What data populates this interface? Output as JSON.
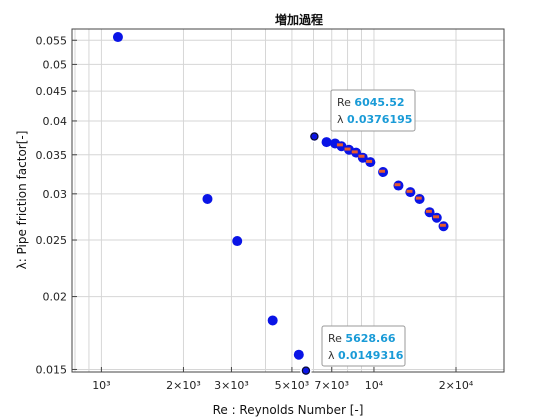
{
  "chart_data": {
    "type": "scatter",
    "title": "増加過程",
    "xlabel": "Re : Reynolds Number [-]",
    "ylabel": "λ: Pipe friction factor[-]",
    "xscale": "log",
    "yscale": "log",
    "xlim": [
      780,
      30000
    ],
    "ylim": [
      0.01485,
      0.0575
    ],
    "grid": true,
    "xticks": [
      {
        "value": 1000,
        "label": "10³"
      },
      {
        "value": 2000,
        "label": "2×10³"
      },
      {
        "value": 3000,
        "label": "3×10³"
      },
      {
        "value": 5000,
        "label": "5×10³"
      },
      {
        "value": 7000,
        "label": "7×10³"
      },
      {
        "value": 10000,
        "label": "10⁴"
      },
      {
        "value": 20000,
        "label": "2×10⁴"
      }
    ],
    "yticks": [
      {
        "value": 0.015,
        "label": "0.015"
      },
      {
        "value": 0.02,
        "label": "0.02"
      },
      {
        "value": 0.025,
        "label": "0.025"
      },
      {
        "value": 0.03,
        "label": "0.03"
      },
      {
        "value": 0.035,
        "label": "0.035"
      },
      {
        "value": 0.04,
        "label": "0.04"
      },
      {
        "value": 0.045,
        "label": "0.045"
      },
      {
        "value": 0.05,
        "label": "0.05"
      },
      {
        "value": 0.055,
        "label": "0.055"
      }
    ],
    "series": [
      {
        "color": "#0a14e6",
        "marker": "filled-circle",
        "points": [
          {
            "x": 1150,
            "y": 0.0557
          },
          {
            "x": 2450,
            "y": 0.0294
          },
          {
            "x": 3150,
            "y": 0.0249
          },
          {
            "x": 4250,
            "y": 0.0182
          },
          {
            "x": 5300,
            "y": 0.0159
          },
          {
            "x": 6700,
            "y": 0.0368
          },
          {
            "x": 7200,
            "y": 0.0366
          },
          {
            "x": 7600,
            "y": 0.0362
          },
          {
            "x": 8100,
            "y": 0.0357
          },
          {
            "x": 8600,
            "y": 0.0353
          },
          {
            "x": 9100,
            "y": 0.0346
          },
          {
            "x": 9700,
            "y": 0.034
          },
          {
            "x": 10800,
            "y": 0.0327
          },
          {
            "x": 12300,
            "y": 0.031
          },
          {
            "x": 13600,
            "y": 0.0302
          },
          {
            "x": 14700,
            "y": 0.0294
          },
          {
            "x": 16000,
            "y": 0.0279
          },
          {
            "x": 17000,
            "y": 0.0273
          },
          {
            "x": 18000,
            "y": 0.0264
          }
        ]
      },
      {
        "color": "#e85a2a",
        "marker": "dash",
        "points": [
          {
            "x": 7500,
            "y": 0.0364
          },
          {
            "x": 8000,
            "y": 0.0358
          },
          {
            "x": 8500,
            "y": 0.0354
          },
          {
            "x": 9000,
            "y": 0.0348
          },
          {
            "x": 9600,
            "y": 0.0341
          },
          {
            "x": 10700,
            "y": 0.0328
          },
          {
            "x": 12200,
            "y": 0.0311
          },
          {
            "x": 13500,
            "y": 0.0303
          },
          {
            "x": 14600,
            "y": 0.0295
          },
          {
            "x": 15900,
            "y": 0.028
          },
          {
            "x": 16900,
            "y": 0.0274
          },
          {
            "x": 17900,
            "y": 0.0265
          }
        ]
      }
    ],
    "annotations": [
      {
        "x": 6045.52,
        "y": 0.0376195,
        "re_label": "Re",
        "re_value": "6045.52",
        "lambda_label": "λ",
        "lambda_value": "0.0376195"
      },
      {
        "x": 5628.66,
        "y": 0.0149316,
        "re_label": "Re",
        "re_value": "5628.66",
        "lambda_label": "λ",
        "lambda_value": "0.0149316"
      }
    ]
  }
}
